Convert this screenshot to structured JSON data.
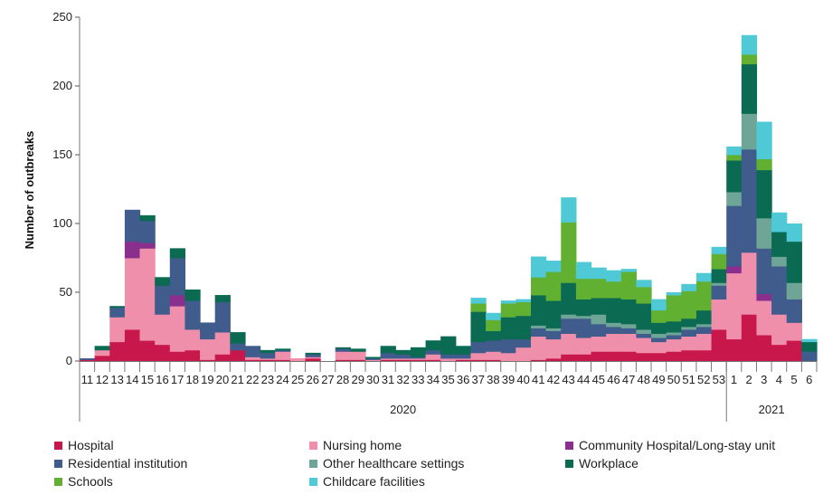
{
  "chart_data": {
    "type": "bar",
    "stacked": true,
    "title": "",
    "xlabel": "",
    "ylabel": "Number of outbreaks",
    "ylim": [
      0,
      250
    ],
    "yticks": [
      0,
      50,
      100,
      150,
      200,
      250
    ],
    "grid": false,
    "legend_position": "bottom",
    "categories": [
      "11",
      "12",
      "13",
      "14",
      "15",
      "16",
      "17",
      "18",
      "19",
      "20",
      "21",
      "22",
      "23",
      "24",
      "25",
      "26",
      "27",
      "28",
      "29",
      "30",
      "31",
      "32",
      "33",
      "34",
      "35",
      "36",
      "37",
      "38",
      "39",
      "40",
      "41",
      "42",
      "43",
      "44",
      "45",
      "46",
      "47",
      "48",
      "49",
      "50",
      "51",
      "52",
      "53",
      "1",
      "2",
      "3",
      "4",
      "5",
      "6"
    ],
    "year_groups": [
      {
        "label": "2020",
        "start": 0,
        "end": 42
      },
      {
        "label": "2021",
        "start": 43,
        "end": 48
      }
    ],
    "series": [
      {
        "name": "Hospital",
        "color": "#c8174a",
        "values": [
          1,
          4,
          14,
          23,
          15,
          12,
          7,
          8,
          1,
          5,
          8,
          1,
          1,
          1,
          0,
          2,
          0,
          1,
          1,
          0,
          1,
          1,
          1,
          1,
          0,
          1,
          1,
          1,
          0,
          0,
          1,
          2,
          5,
          5,
          7,
          7,
          7,
          6,
          6,
          7,
          8,
          8,
          23,
          16,
          34,
          19,
          12,
          15,
          0
        ]
      },
      {
        "name": "Nursing home",
        "color": "#ef8fab",
        "values": [
          0,
          4,
          18,
          52,
          67,
          22,
          33,
          15,
          15,
          16,
          0,
          2,
          1,
          6,
          2,
          1,
          0,
          6,
          6,
          1,
          1,
          1,
          1,
          4,
          2,
          1,
          5,
          6,
          6,
          10,
          17,
          14,
          15,
          12,
          11,
          13,
          13,
          11,
          8,
          9,
          10,
          12,
          22,
          48,
          45,
          25,
          22,
          13,
          0
        ]
      },
      {
        "name": "Community Hospital/Long-stay unit",
        "color": "#8b2f8f",
        "values": [
          0,
          0,
          0,
          12,
          4,
          0,
          8,
          0,
          0,
          0,
          0,
          0,
          0,
          0,
          0,
          0,
          0,
          0,
          0,
          0,
          0,
          0,
          0,
          0,
          0,
          0,
          0,
          0,
          0,
          0,
          0,
          0,
          0,
          0,
          0,
          0,
          0,
          0,
          0,
          0,
          0,
          0,
          0,
          5,
          0,
          5,
          0,
          0,
          0
        ]
      },
      {
        "name": "Residential institution",
        "color": "#3f5c8c",
        "values": [
          1,
          0,
          7,
          23,
          16,
          21,
          27,
          21,
          12,
          22,
          5,
          8,
          4,
          1,
          0,
          2,
          0,
          2,
          0,
          1,
          4,
          3,
          1,
          3,
          3,
          3,
          8,
          8,
          10,
          6,
          6,
          6,
          11,
          14,
          9,
          5,
          4,
          3,
          3,
          3,
          5,
          5,
          10,
          44,
          75,
          33,
          35,
          17,
          7
        ]
      },
      {
        "name": "Other healthcare settings",
        "color": "#6fa596",
        "values": [
          0,
          0,
          0,
          0,
          0,
          0,
          0,
          0,
          0,
          0,
          0,
          0,
          0,
          0,
          0,
          0,
          0,
          0,
          0,
          0,
          0,
          0,
          0,
          0,
          0,
          0,
          0,
          0,
          0,
          0,
          2,
          2,
          3,
          2,
          7,
          3,
          3,
          3,
          3,
          2,
          2,
          2,
          2,
          10,
          26,
          22,
          7,
          12,
          0
        ]
      },
      {
        "name": "Workplace",
        "color": "#0b6a52",
        "values": [
          0,
          3,
          1,
          0,
          4,
          6,
          7,
          8,
          0,
          5,
          8,
          0,
          2,
          1,
          0,
          1,
          0,
          1,
          2,
          1,
          5,
          3,
          7,
          7,
          13,
          6,
          22,
          7,
          16,
          17,
          22,
          20,
          23,
          12,
          12,
          18,
          18,
          19,
          8,
          8,
          6,
          10,
          10,
          23,
          36,
          35,
          18,
          30,
          7
        ]
      },
      {
        "name": "Schools",
        "color": "#62b032",
        "values": [
          0,
          0,
          0,
          0,
          0,
          0,
          0,
          0,
          0,
          0,
          0,
          0,
          0,
          0,
          0,
          0,
          0,
          0,
          0,
          0,
          0,
          0,
          0,
          0,
          0,
          0,
          6,
          8,
          10,
          10,
          13,
          21,
          44,
          15,
          14,
          12,
          20,
          12,
          9,
          19,
          20,
          21,
          11,
          4,
          7,
          8,
          0,
          0,
          0
        ]
      },
      {
        "name": "Childcare facilities",
        "color": "#4fc9d6",
        "values": [
          0,
          0,
          0,
          0,
          0,
          0,
          0,
          0,
          0,
          0,
          0,
          0,
          0,
          0,
          0,
          0,
          0,
          0,
          0,
          0,
          0,
          0,
          0,
          0,
          0,
          0,
          4,
          5,
          2,
          2,
          15,
          8,
          18,
          12,
          8,
          8,
          2,
          5,
          8,
          2,
          5,
          6,
          5,
          6,
          14,
          27,
          14,
          13,
          2
        ]
      }
    ]
  }
}
